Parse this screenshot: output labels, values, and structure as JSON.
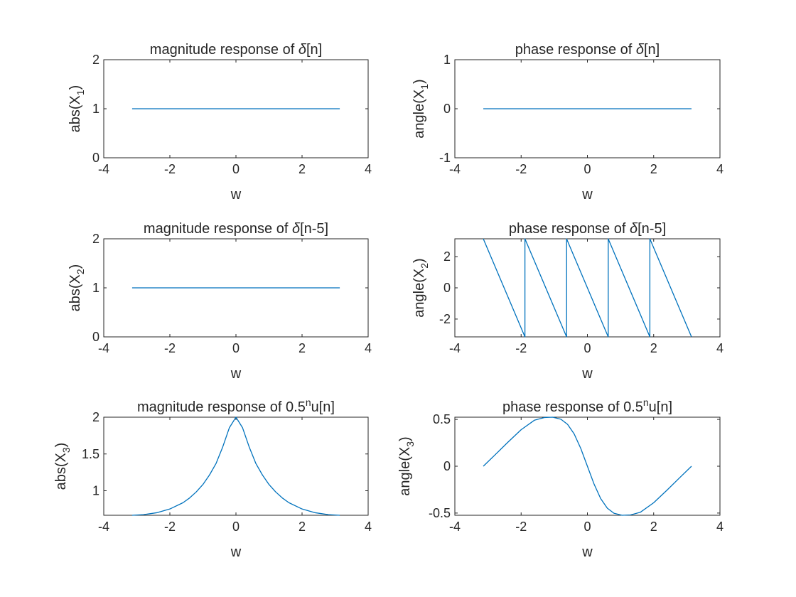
{
  "figure": {
    "background": "#ffffff",
    "axis_color": "#262626",
    "line_color": "#0072bd"
  },
  "chart_data": [
    {
      "type": "line",
      "title": {
        "main": "magnitude response of ",
        "delta": "δ",
        "rest": "[n]"
      },
      "xlabel": "w",
      "ylabel": {
        "base": "abs(X",
        "sub": "1",
        "close": ")"
      },
      "xlim": [
        -4,
        4
      ],
      "ylim": [
        0,
        2
      ],
      "xticks": [
        -4,
        -2,
        0,
        2,
        4
      ],
      "yticks": [
        0,
        1,
        2
      ],
      "grid": false,
      "series": [
        {
          "x": [
            -3.1416,
            3.1416
          ],
          "y": [
            1,
            1
          ]
        }
      ]
    },
    {
      "type": "line",
      "title": {
        "main": "phase response of ",
        "delta": "δ",
        "rest": "[n]"
      },
      "xlabel": "w",
      "ylabel": {
        "base": "angle(X",
        "sub": "1",
        "close": ")"
      },
      "xlim": [
        -4,
        4
      ],
      "ylim": [
        -1,
        1
      ],
      "xticks": [
        -4,
        -2,
        0,
        2,
        4
      ],
      "yticks": [
        -1,
        0,
        1
      ],
      "grid": false,
      "series": [
        {
          "x": [
            -3.1416,
            3.1416
          ],
          "y": [
            0,
            0
          ]
        }
      ]
    },
    {
      "type": "line",
      "title": {
        "main": "magnitude response of ",
        "delta": "δ",
        "rest": "[n-5]"
      },
      "xlabel": "w",
      "ylabel": {
        "base": "abs(X",
        "sub": "2",
        "close": ")"
      },
      "xlim": [
        -4,
        4
      ],
      "ylim": [
        0,
        2
      ],
      "xticks": [
        -4,
        -2,
        0,
        2,
        4
      ],
      "yticks": [
        0,
        1,
        2
      ],
      "grid": false,
      "series": [
        {
          "x": [
            -3.1416,
            3.1416
          ],
          "y": [
            1,
            1
          ]
        }
      ]
    },
    {
      "type": "line",
      "title": {
        "main": "phase response of ",
        "delta": "δ",
        "rest": "[n-5]"
      },
      "xlabel": "w",
      "ylabel": {
        "base": "angle(X",
        "sub": "2",
        "close": ")"
      },
      "xlim": [
        -4,
        4
      ],
      "ylim": [
        -3.1416,
        3.1416
      ],
      "xticks": [
        -4,
        -2,
        0,
        2,
        4
      ],
      "yticks": [
        -2,
        0,
        2
      ],
      "grid": false,
      "series": [
        {
          "x": [
            -3.1416,
            -1.885,
            -1.885,
            -0.6283,
            -0.6283,
            0.6283,
            0.6283,
            1.885,
            1.885,
            3.1416
          ],
          "y": [
            3.1416,
            -3.1416,
            3.1416,
            -3.1416,
            3.1416,
            -3.1416,
            3.1416,
            -3.1416,
            3.1416,
            -3.1416
          ]
        }
      ]
    },
    {
      "type": "line",
      "title": {
        "main": "magnitude response of 0.5",
        "sup": "n",
        "rest": "u[n]"
      },
      "xlabel": "w",
      "ylabel": {
        "base": "abs(X",
        "sub": "3",
        "close": ")"
      },
      "xlim": [
        -4,
        4
      ],
      "ylim": [
        0.6667,
        2
      ],
      "xticks": [
        -4,
        -2,
        0,
        2,
        4
      ],
      "yticks": [
        1,
        1.5,
        2
      ],
      "grid": false,
      "series": [
        {
          "x": [
            -3.1416,
            -2.8,
            -2.4,
            -2.0,
            -1.6,
            -1.4,
            -1.2,
            -1.0,
            -0.8,
            -0.6,
            -0.4,
            -0.2,
            0,
            0.2,
            0.4,
            0.6,
            0.8,
            1.0,
            1.2,
            1.4,
            1.6,
            2.0,
            2.4,
            2.8,
            3.1416
          ],
          "y": [
            0.667,
            0.675,
            0.701,
            0.752,
            0.838,
            0.903,
            0.985,
            1.085,
            1.215,
            1.373,
            1.596,
            1.856,
            2.0,
            1.856,
            1.596,
            1.373,
            1.215,
            1.085,
            0.985,
            0.903,
            0.838,
            0.752,
            0.701,
            0.675,
            0.667
          ]
        }
      ]
    },
    {
      "type": "line",
      "title": {
        "main": "phase response of 0.5",
        "sup": "n",
        "rest": "u[n]"
      },
      "xlabel": "w",
      "ylabel": {
        "base": "angle(X",
        "sub": "3",
        "close": ")"
      },
      "xlim": [
        -4,
        4
      ],
      "ylim": [
        -0.5236,
        0.5236
      ],
      "xticks": [
        -4,
        -2,
        0,
        2,
        4
      ],
      "yticks": [
        -0.5,
        0,
        0.5
      ],
      "grid": false,
      "series": [
        {
          "x": [
            -3.1416,
            -2.8,
            -2.4,
            -2.0,
            -1.6,
            -1.3,
            -1.0472,
            -0.8,
            -0.6,
            -0.4,
            -0.2,
            0,
            0.2,
            0.4,
            0.6,
            0.8,
            1.0472,
            1.3,
            1.6,
            2.0,
            2.4,
            2.8,
            3.1416
          ],
          "y": [
            0,
            0.117,
            0.256,
            0.39,
            0.491,
            0.52,
            0.5236,
            0.502,
            0.448,
            0.345,
            0.19,
            0,
            -0.19,
            -0.345,
            -0.448,
            -0.502,
            -0.5236,
            -0.52,
            -0.491,
            -0.39,
            -0.256,
            -0.117,
            0
          ]
        }
      ]
    }
  ]
}
